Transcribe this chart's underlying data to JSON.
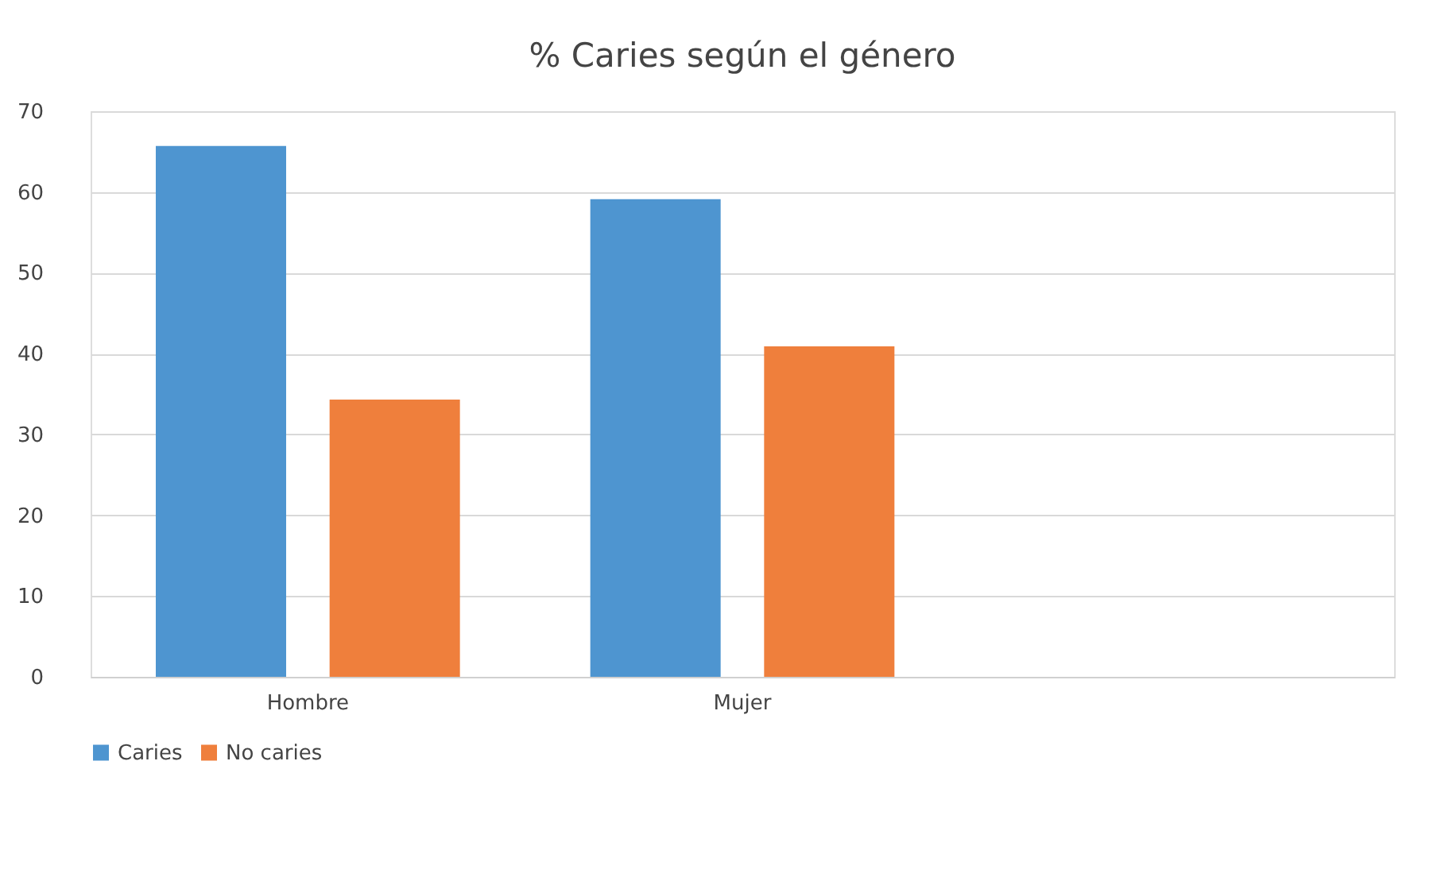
{
  "chart_data": {
    "type": "bar",
    "title": "% Caries según el género",
    "categories": [
      "Hombre",
      "Mujer",
      null
    ],
    "series": [
      {
        "name": "Caries",
        "color": "#4e95d0",
        "values": [
          65.7,
          59.1,
          null
        ]
      },
      {
        "name": "No caries",
        "color": "#ef7f3c",
        "values": [
          34.3,
          40.9,
          null
        ]
      }
    ],
    "ylim": [
      0,
      70
    ],
    "yticks": [
      0,
      10,
      20,
      30,
      40,
      50,
      60,
      70
    ],
    "grid": "y",
    "legend": "bottom"
  }
}
